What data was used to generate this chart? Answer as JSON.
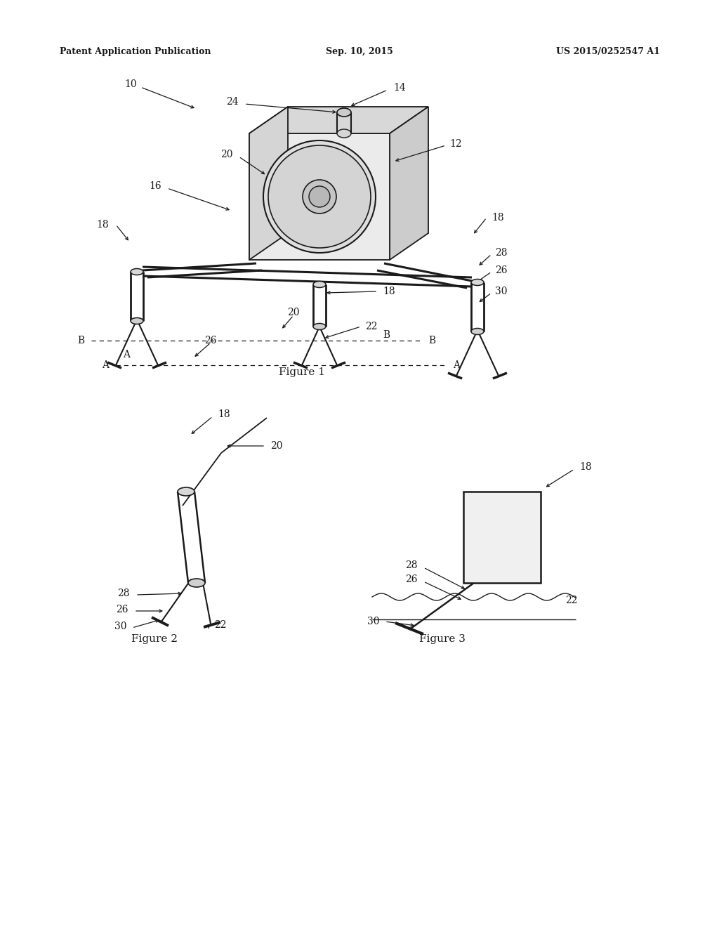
{
  "bg_color": "#ffffff",
  "header_left": "Patent Application Publication",
  "header_center": "Sep. 10, 2015",
  "header_right": "US 2015/0252547 A1",
  "line_color": "#1a1a1a",
  "label_color": "#1a1a1a",
  "label_fontsize": 10,
  "header_fontsize": 9,
  "caption_fontsize": 11
}
